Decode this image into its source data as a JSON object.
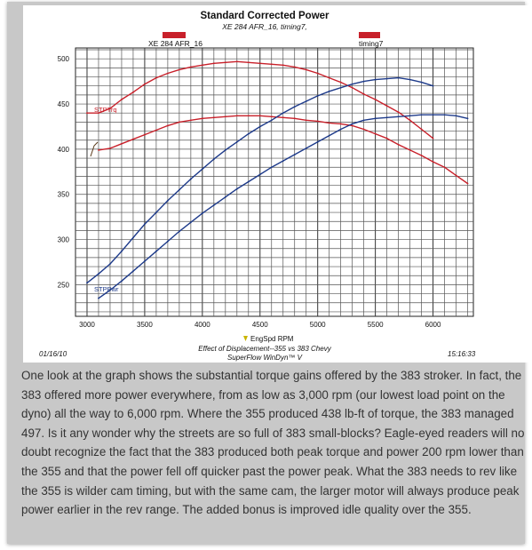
{
  "chart_data": {
    "type": "line",
    "title": "Standard Corrected Power",
    "subtitle": "XE 284 AFR_16, timing7,",
    "legend_left": "XE 284 AFR_16",
    "legend_right": "timing7",
    "xlabel": "EngSpd  RPM",
    "footer_line1": "Effect of Displacement--355 vs 383 Chevy",
    "footer_line2": "SuperFlow WinDyn™ V",
    "date": "01/16/10",
    "time": "15:16:33",
    "label_torque": "STPTrq",
    "label_power": "STPPwr",
    "x_ticks": [
      "3000",
      "3500",
      "4000",
      "4500",
      "5000",
      "5500",
      "6000"
    ],
    "y_ticks": [
      "250",
      "300",
      "350",
      "400",
      "450",
      "500"
    ],
    "xlim": [
      2900,
      6350
    ],
    "ylim": [
      215,
      512
    ],
    "colors": {
      "red": "#c8202a",
      "blue": "#1d3a8a"
    },
    "series": [
      {
        "color": "red",
        "x": [
          3000,
          3100,
          3200,
          3300,
          3400,
          3500,
          3600,
          3700,
          3800,
          3900,
          4000,
          4100,
          4200,
          4300,
          4400,
          4500,
          4600,
          4700,
          4800,
          4900,
          5000,
          5100,
          5200,
          5300,
          5400,
          5500,
          5600,
          5700,
          5800,
          5900,
          6000
        ],
        "values": [
          440,
          440,
          445,
          455,
          463,
          472,
          479,
          484,
          488,
          491,
          493,
          495,
          496,
          497,
          496,
          495,
          494,
          493,
          491,
          488,
          484,
          479,
          474,
          468,
          461,
          455,
          448,
          441,
          432,
          422,
          412
        ]
      },
      {
        "color": "red",
        "x": [
          3100,
          3200,
          3300,
          3400,
          3500,
          3600,
          3700,
          3800,
          3900,
          4000,
          4100,
          4200,
          4300,
          4400,
          4500,
          4600,
          4700,
          4800,
          4900,
          5000,
          5100,
          5200,
          5300,
          5400,
          5500,
          5600,
          5700,
          5800,
          5900,
          6000,
          6100,
          6200,
          6300
        ],
        "values": [
          399,
          401,
          406,
          411,
          416,
          421,
          426,
          430,
          432,
          434,
          435,
          436,
          437,
          437,
          437,
          436,
          435,
          434,
          432,
          431,
          429,
          428,
          426,
          422,
          417,
          412,
          405,
          399,
          393,
          386,
          380,
          371,
          362
        ]
      },
      {
        "color": "blue",
        "x": [
          3000,
          3100,
          3200,
          3300,
          3400,
          3500,
          3600,
          3700,
          3800,
          3900,
          4000,
          4100,
          4200,
          4300,
          4400,
          4500,
          4600,
          4700,
          4800,
          4900,
          5000,
          5100,
          5200,
          5300,
          5400,
          5500,
          5600,
          5700,
          5800,
          5900,
          6000
        ],
        "values": [
          252,
          262,
          273,
          287,
          302,
          317,
          330,
          343,
          355,
          367,
          378,
          389,
          399,
          408,
          417,
          425,
          432,
          440,
          447,
          453,
          459,
          464,
          468,
          472,
          475,
          477,
          478,
          479,
          477,
          474,
          470
        ]
      },
      {
        "color": "blue",
        "x": [
          3100,
          3200,
          3300,
          3400,
          3500,
          3600,
          3700,
          3800,
          3900,
          4000,
          4100,
          4200,
          4300,
          4400,
          4500,
          4600,
          4700,
          4800,
          4900,
          5000,
          5100,
          5200,
          5300,
          5400,
          5500,
          5600,
          5700,
          5800,
          5900,
          6000,
          6100,
          6200,
          6300
        ],
        "values": [
          235,
          244,
          254,
          265,
          276,
          287,
          298,
          309,
          319,
          329,
          338,
          347,
          356,
          364,
          372,
          380,
          387,
          394,
          401,
          408,
          415,
          422,
          428,
          432,
          434,
          435,
          436,
          437,
          438,
          438,
          438,
          437,
          434
        ]
      }
    ]
  },
  "caption": "One look at the graph shows the substantial torque gains offered by the 383 stroker. In fact, the 383 offered more power everywhere, from as low as 3,000 rpm (our lowest load point on the dyno) all the way to 6,000 rpm. Where the 355 produced 438 lb-ft of torque, the 383 managed 497. Is it any wonder why the streets are so full of 383 small-blocks? Eagle-eyed readers will no doubt recognize the fact that the 383 produced both peak torque and power 200 rpm lower than the 355 and that the power fell off quicker past the power peak. What the 383 needs to rev like the 355 is wilder cam timing, but with the same cam, the larger motor will always produce peak power earlier in the rev range. The added bonus is improved idle quality over the 355."
}
